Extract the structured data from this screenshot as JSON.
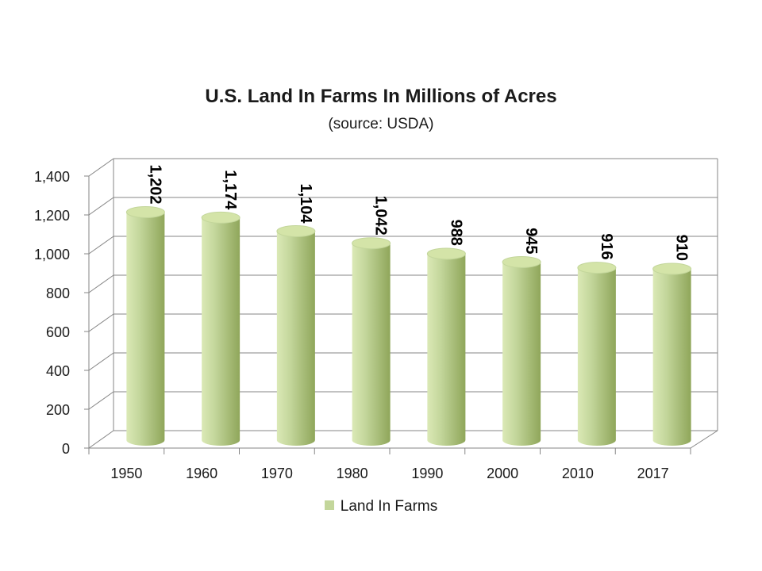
{
  "chart_data": {
    "type": "bar",
    "title": "U.S. Land In Farms In Millions of Acres",
    "subtitle": "(source: USDA)",
    "categories": [
      "1950",
      "1960",
      "1970",
      "1980",
      "1990",
      "2000",
      "2010",
      "2017"
    ],
    "series": [
      {
        "name": "Land In Farms",
        "values": [
          1202,
          1174,
          1104,
          1042,
          988,
          945,
          916,
          910
        ],
        "labels": [
          "1,202",
          "1,174",
          "1,104",
          "1,042",
          "988",
          "945",
          "916",
          "910"
        ]
      }
    ],
    "ylim": [
      0,
      1400
    ],
    "yticks": [
      "0",
      "200",
      "400",
      "600",
      "800",
      "1,000",
      "1,200",
      "1,400"
    ],
    "grid": true,
    "style": "3d-cylinder",
    "legend_position": "bottom",
    "colors": {
      "bar_light": "#dbe9b6",
      "bar_mid": "#c3d69b",
      "bar_dark": "#8fa65a",
      "bar_top": "#d4e4a8",
      "gridline": "#868686",
      "legend_swatch": "#c3d69b"
    }
  }
}
